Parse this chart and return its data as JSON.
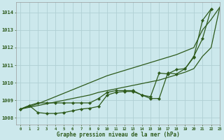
{
  "title": "Graphe pression niveau de la mer (hPa)",
  "bg_color": "#cce8ec",
  "grid_color": "#b0cfd4",
  "line_color": "#2d5a1b",
  "xlim": [
    -0.5,
    23
  ],
  "ylim": [
    1007.6,
    1014.6
  ],
  "yticks": [
    1008,
    1009,
    1010,
    1011,
    1012,
    1013,
    1014
  ],
  "xticks": [
    0,
    1,
    2,
    3,
    4,
    5,
    6,
    7,
    8,
    9,
    10,
    11,
    12,
    13,
    14,
    15,
    16,
    17,
    18,
    19,
    20,
    21,
    22,
    23
  ],
  "smooth_upper": [
    1008.5,
    1008.65,
    1008.8,
    1009.0,
    1009.2,
    1009.4,
    1009.6,
    1009.8,
    1010.0,
    1010.2,
    1010.4,
    1010.55,
    1010.7,
    1010.85,
    1011.0,
    1011.15,
    1011.3,
    1011.45,
    1011.6,
    1011.8,
    1012.0,
    1013.0,
    1013.6,
    1014.3
  ],
  "smooth_lower": [
    1008.5,
    1008.6,
    1008.7,
    1008.8,
    1008.9,
    1009.0,
    1009.1,
    1009.2,
    1009.3,
    1009.45,
    1009.55,
    1009.65,
    1009.75,
    1009.85,
    1009.95,
    1010.05,
    1010.15,
    1010.3,
    1010.45,
    1010.6,
    1010.8,
    1011.5,
    1012.0,
    1014.3
  ],
  "marker_upper_x": [
    0,
    1,
    2,
    3,
    4,
    5,
    6,
    7,
    8,
    9,
    10,
    11,
    12,
    13,
    14,
    15,
    16,
    17,
    18,
    19,
    20,
    21,
    22
  ],
  "marker_upper_y": [
    1008.5,
    1008.7,
    1008.85,
    1008.85,
    1008.85,
    1008.85,
    1008.85,
    1008.85,
    1008.85,
    1009.1,
    1009.45,
    1009.55,
    1009.55,
    1009.55,
    1009.3,
    1009.2,
    1010.55,
    1010.5,
    1010.75,
    1010.8,
    1011.5,
    1012.5,
    1014.2
  ],
  "marker_lower_x": [
    0,
    1,
    2,
    3,
    4,
    5,
    6,
    7,
    8,
    9,
    10,
    11,
    12,
    13,
    14,
    15,
    16,
    17,
    18,
    19,
    20,
    21,
    22
  ],
  "marker_lower_y": [
    1008.5,
    1008.7,
    1008.3,
    1008.25,
    1008.25,
    1008.3,
    1008.4,
    1008.5,
    1008.55,
    1008.65,
    1009.3,
    1009.45,
    1009.5,
    1009.5,
    1009.3,
    1009.1,
    1009.1,
    1010.55,
    1010.5,
    1010.8,
    1011.45,
    1013.55,
    1014.2
  ]
}
